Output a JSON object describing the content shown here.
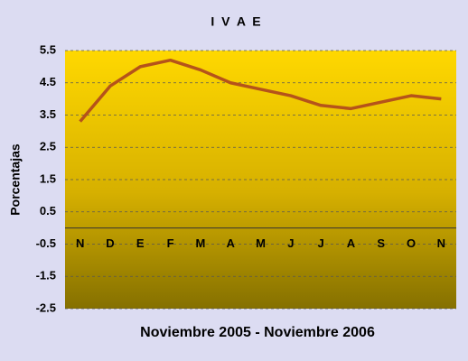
{
  "chart_data": {
    "type": "line",
    "title": "I V A E",
    "y_label": "Porcentajas",
    "x_label": "Noviembre 2005 - Noviembre 2006",
    "categories": [
      "N",
      "D",
      "E",
      "F",
      "M",
      "A",
      "M",
      "J",
      "J",
      "A",
      "S",
      "O",
      "N"
    ],
    "series": [
      {
        "color": "#b5531a",
        "values": [
          3.3,
          4.4,
          5.0,
          5.2,
          4.9,
          4.5,
          4.3,
          4.1,
          3.8,
          3.7,
          3.9,
          4.1,
          4.0
        ]
      }
    ],
    "ylim": [
      -2.5,
      5.5
    ],
    "yticks": [
      -2.5,
      -1.5,
      -0.5,
      0.5,
      1.5,
      2.5,
      3.5,
      4.5,
      5.5
    ],
    "grid": true
  }
}
